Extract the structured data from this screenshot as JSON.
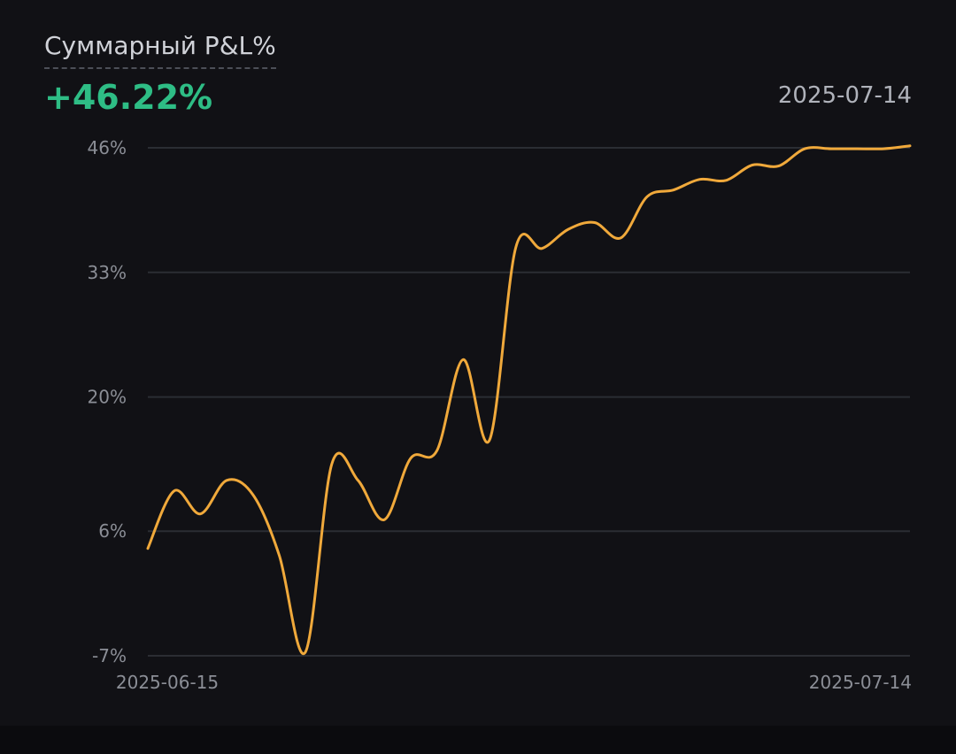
{
  "header": {
    "title": "Суммарный P&L%",
    "value": "+46.22%",
    "date": "2025-07-14"
  },
  "colors": {
    "background": "#111115",
    "positive": "#2ebd85",
    "line": "#f0a93b",
    "grid": "#2b2d33",
    "tick_text": "#8b8e96"
  },
  "chart_data": {
    "type": "line",
    "title": "Суммарный P&L%",
    "xlabel": "",
    "ylabel": "",
    "ylim": [
      -7,
      46
    ],
    "yticks": [
      46,
      33,
      20,
      6,
      -7
    ],
    "ytick_labels": [
      "46%",
      "33%",
      "20%",
      "6%",
      "-7%"
    ],
    "xtick_labels": [
      "2025-06-15",
      "2025-07-14"
    ],
    "grid": true,
    "x": [
      0,
      1,
      2,
      3,
      4,
      5,
      6,
      7,
      8,
      9,
      10,
      11,
      12,
      13,
      14,
      15,
      16,
      17,
      18,
      19,
      20,
      21,
      22,
      23,
      24,
      25,
      26,
      27,
      28,
      29
    ],
    "values": [
      4.2,
      10.2,
      7.8,
      11.3,
      9.8,
      3.5,
      -6.6,
      13.0,
      11.3,
      7.2,
      13.6,
      14.4,
      23.9,
      15.5,
      35.6,
      35.5,
      37.5,
      38.2,
      36.6,
      40.9,
      41.6,
      42.7,
      42.6,
      44.2,
      44.1,
      45.9,
      45.9,
      45.9,
      45.9,
      46.2
    ]
  }
}
